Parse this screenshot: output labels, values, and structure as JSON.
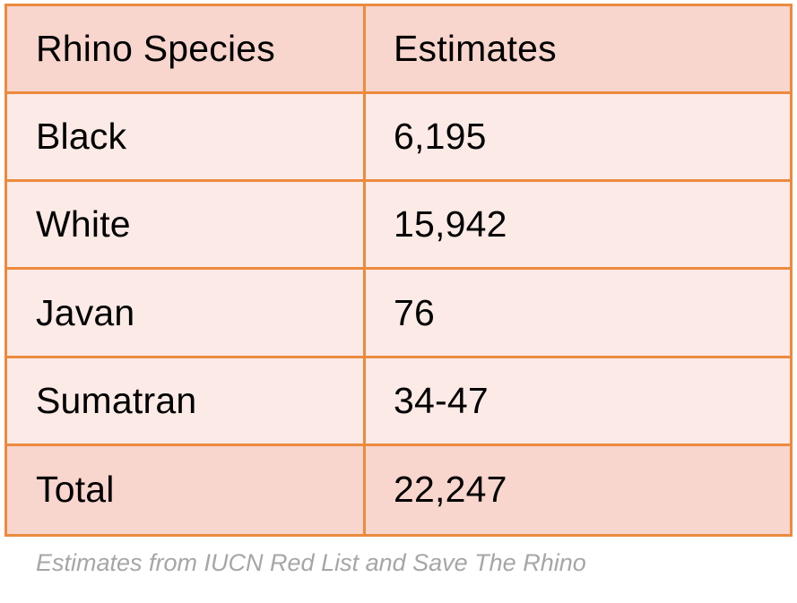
{
  "chart_data": {
    "type": "table",
    "columns": [
      "Rhino Species",
      "Estimates"
    ],
    "rows": [
      {
        "species": "Black",
        "estimate": "6,195"
      },
      {
        "species": "White",
        "estimate": "15,942"
      },
      {
        "species": "Javan",
        "estimate": "76"
      },
      {
        "species": "Sumatran",
        "estimate": "34-47"
      }
    ],
    "total": {
      "label": "Total",
      "value": "22,247"
    },
    "caption": "Estimates from IUCN Red List and Save The Rhino"
  },
  "colors": {
    "border": "#ec8a3e",
    "header_fill": "#f8d5cd",
    "row_fill": "#fbeae6",
    "total_fill": "#f8d5cd",
    "caption_text": "#a6a6a6"
  }
}
